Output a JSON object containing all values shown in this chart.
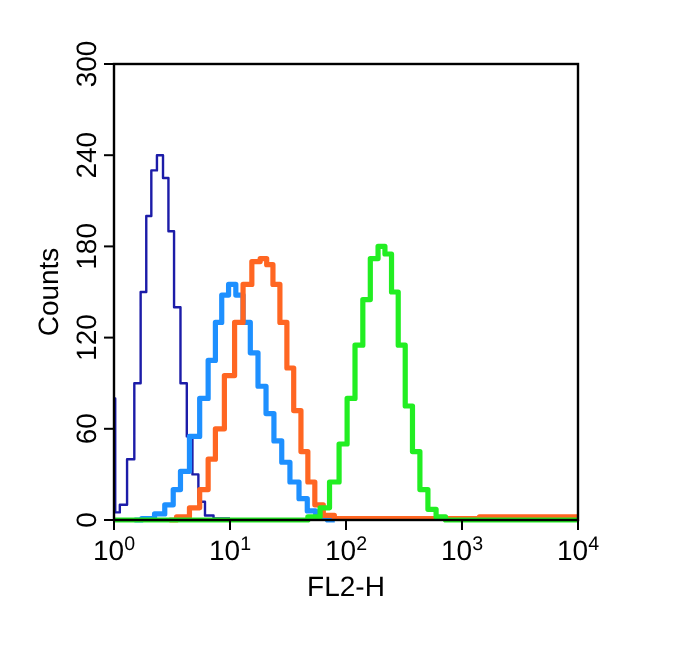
{
  "chart_data": {
    "type": "step",
    "xlabel": "FL2-H",
    "ylabel": "Counts",
    "log": "x",
    "xlim": [
      1,
      10000
    ],
    "xticks": [
      {
        "value": 1,
        "label": "10$^{0}$"
      },
      {
        "value": 10,
        "label": "10$^{1}$"
      },
      {
        "value": 100,
        "label": "10$^{2}$"
      },
      {
        "value": 1000,
        "label": "10$^{3}$"
      },
      {
        "value": 10000,
        "label": "10$^{4}$"
      }
    ],
    "ylim": [
      0,
      300
    ],
    "yticks": [
      0,
      60,
      120,
      180,
      240,
      300
    ],
    "grid": false,
    "series": [
      {
        "color": "#1c1ca8",
        "x": [
          1,
          1.05,
          1.2,
          1.4,
          1.6,
          1.8,
          2,
          2.2,
          2.5,
          2.8,
          3.1,
          3.5,
          4,
          4.5,
          5,
          5.7,
          6.5,
          8,
          10
        ],
        "values": [
          80,
          5,
          10,
          40,
          90,
          150,
          200,
          230,
          240,
          225,
          190,
          140,
          90,
          55,
          30,
          12,
          3,
          1,
          1
        ]
      },
      {
        "color": "#1e90ff",
        "x": [
          1.5,
          2,
          2.5,
          3,
          3.5,
          4,
          5,
          6,
          7,
          8,
          9,
          10.5,
          12,
          14,
          16,
          19,
          22,
          26,
          30,
          36,
          43,
          50,
          60,
          80
        ],
        "values": [
          0,
          1,
          4,
          10,
          20,
          32,
          55,
          80,
          105,
          130,
          148,
          155,
          148,
          130,
          110,
          88,
          70,
          52,
          38,
          25,
          14,
          6,
          2,
          0
        ]
      },
      {
        "color": "#ff6622",
        "x": [
          3,
          4,
          5,
          6,
          7,
          8,
          10,
          12,
          14,
          17,
          19.5,
          22,
          25,
          29,
          33,
          38,
          44,
          50,
          58,
          70,
          90,
          200,
          10000
        ],
        "values": [
          0,
          2,
          8,
          20,
          40,
          60,
          95,
          130,
          155,
          170,
          172,
          168,
          155,
          130,
          100,
          72,
          45,
          25,
          10,
          3,
          1,
          1,
          2
        ]
      },
      {
        "color": "#22ee22",
        "x": [
          1,
          40,
          55,
          65,
          80,
          95,
          110,
          130,
          150,
          175,
          204,
          230,
          265,
          300,
          350,
          400,
          470,
          550,
          650,
          800,
          10000
        ],
        "values": [
          0,
          0,
          2,
          8,
          25,
          50,
          80,
          115,
          145,
          172,
          180,
          175,
          150,
          115,
          75,
          45,
          20,
          7,
          2,
          0,
          0
        ]
      }
    ]
  }
}
